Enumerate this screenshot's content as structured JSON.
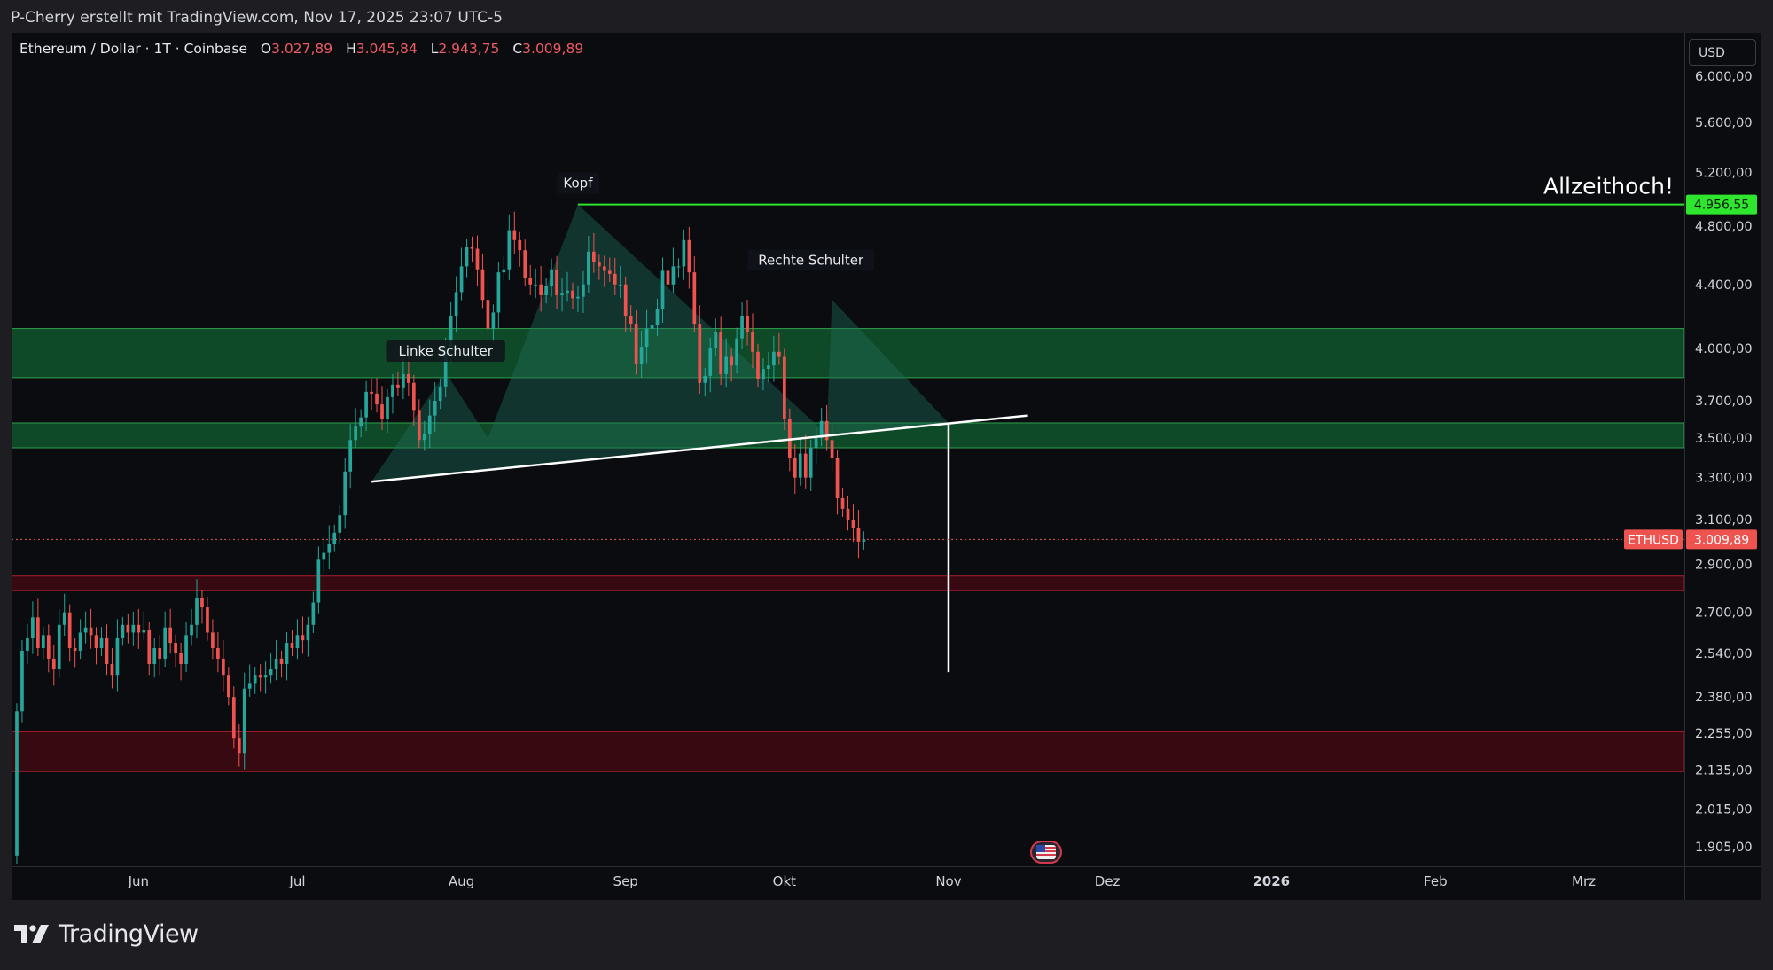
{
  "header": {
    "title": "P-Cherry erstellt mit TradingView.com, Nov 17, 2025 23:07 UTC-5"
  },
  "legend": {
    "symbol": "Ethereum / Dollar · 1T · Coinbase",
    "open_label": "O",
    "open": "3.027,89",
    "high_label": "H",
    "high": "3.045,84",
    "low_label": "L",
    "low": "2.943,75",
    "close_label": "C",
    "close": "3.009,89"
  },
  "currency": "USD",
  "logo": {
    "text": "TradingView",
    "icon": "tradingview-logo-icon"
  },
  "event_badge": {
    "icon": "us-flag-icon"
  },
  "colors": {
    "bull": "#26a69a",
    "bear": "#ef5350",
    "ath_line": "#2ee62e",
    "green_zone": "#0f4d2a",
    "red_zone": "#3a0a12",
    "neckline": "#ffffff"
  },
  "chart_data": {
    "type": "candlestick",
    "timeframe": "1T",
    "price_scale": "log",
    "ylim": [
      1850,
      6400
    ],
    "y_ticks": [
      6000,
      5600,
      5200,
      4800,
      4400,
      4000,
      3700,
      3500,
      3300,
      3100,
      2900,
      2700,
      2540,
      2380,
      2255,
      2135,
      2015,
      1905
    ],
    "y_tick_labels": [
      "6.000,00",
      "5.600,00",
      "5.200,00",
      "4.800,00",
      "4.400,00",
      "4.000,00",
      "3.700,00",
      "3.500,00",
      "3.300,00",
      "3.100,00",
      "2.900,00",
      "2.700,00",
      "2.540,00",
      "2.380,00",
      "2.255,00",
      "2.135,00",
      "2.015,00",
      "1.905,00"
    ],
    "x_range": [
      "2025-05-08",
      "2026-03-20"
    ],
    "x_ticks": [
      {
        "date": "2025-06-01",
        "label": "Jun"
      },
      {
        "date": "2025-07-01",
        "label": "Jul"
      },
      {
        "date": "2025-08-01",
        "label": "Aug"
      },
      {
        "date": "2025-09-01",
        "label": "Sep"
      },
      {
        "date": "2025-10-01",
        "label": "Okt"
      },
      {
        "date": "2025-11-01",
        "label": "Nov"
      },
      {
        "date": "2025-12-01",
        "label": "Dez"
      },
      {
        "date": "2026-01-01",
        "label": "2026",
        "bold": true
      },
      {
        "date": "2026-02-01",
        "label": "Feb"
      },
      {
        "date": "2026-03-01",
        "label": "Mrz"
      }
    ],
    "closes_series": {
      "start_date": "2025-05-09",
      "start_open": 1880,
      "values": [
        2330,
        2550,
        2600,
        2680,
        2560,
        2610,
        2520,
        2480,
        2650,
        2700,
        2560,
        2550,
        2620,
        2640,
        2610,
        2560,
        2600,
        2500,
        2460,
        2600,
        2650,
        2620,
        2650,
        2620,
        2630,
        2500,
        2560,
        2520,
        2640,
        2580,
        2540,
        2500,
        2610,
        2650,
        2760,
        2720,
        2620,
        2560,
        2520,
        2460,
        2380,
        2240,
        2190,
        2410,
        2430,
        2460,
        2450,
        2460,
        2480,
        2520,
        2500,
        2580,
        2560,
        2610,
        2590,
        2650,
        2740,
        2920,
        2950,
        2990,
        3040,
        3120,
        3330,
        3490,
        3560,
        3610,
        3750,
        3740,
        3680,
        3600,
        3720,
        3790,
        3770,
        3850,
        3800,
        3650,
        3490,
        3520,
        3620,
        3700,
        3780,
        4000,
        4200,
        4350,
        4520,
        4650,
        4640,
        4500,
        4300,
        4120,
        4220,
        4480,
        4500,
        4770,
        4700,
        4630,
        4440,
        4400,
        4400,
        4330,
        4390,
        4500,
        4330,
        4340,
        4360,
        4310,
        4320,
        4400,
        4620,
        4550,
        4520,
        4490,
        4470,
        4400,
        4400,
        4200,
        4150,
        3910,
        4010,
        4120,
        4140,
        4240,
        4490,
        4400,
        4520,
        4520,
        4700,
        4480,
        4150,
        3800,
        3840,
        4000,
        4100,
        3850,
        3950,
        3900,
        4060,
        4200,
        4100,
        3980,
        3820,
        3880,
        3900,
        3980,
        3950,
        3600,
        3400,
        3300,
        3420,
        3300,
        3450,
        3500,
        3590,
        3490,
        3400,
        3200,
        3150,
        3100,
        3060,
        3000,
        3010
      ]
    },
    "current_price": {
      "value": 3009.89,
      "label": "3.009,89",
      "ticker": "ETHUSD"
    },
    "ath": {
      "value": 4956.55,
      "label": "4.956,55",
      "annotation": "Allzeithoch!"
    },
    "zones": [
      {
        "type": "support",
        "color": "green",
        "low": 3830,
        "high": 4120
      },
      {
        "type": "support",
        "color": "green",
        "low": 3450,
        "high": 3580
      },
      {
        "type": "support",
        "color": "red",
        "low": 2790,
        "high": 2850
      },
      {
        "type": "support",
        "color": "red",
        "low": 2130,
        "high": 2260
      }
    ],
    "pattern": {
      "name": "head-and-shoulders",
      "labels": [
        {
          "text": "Linke Schulter",
          "date": "2025-07-29",
          "price": 3860
        },
        {
          "text": "Kopf",
          "date": "2025-08-23",
          "price": 4956
        },
        {
          "text": "Rechte Schulter",
          "date": "2025-10-06",
          "price": 4420
        }
      ],
      "neckline": [
        {
          "date": "2025-07-15",
          "price": 3280
        },
        {
          "date": "2025-11-16",
          "price": 3620
        }
      ],
      "target_line": {
        "date": "2025-11-01",
        "from": 3580,
        "to": 2470
      }
    }
  }
}
